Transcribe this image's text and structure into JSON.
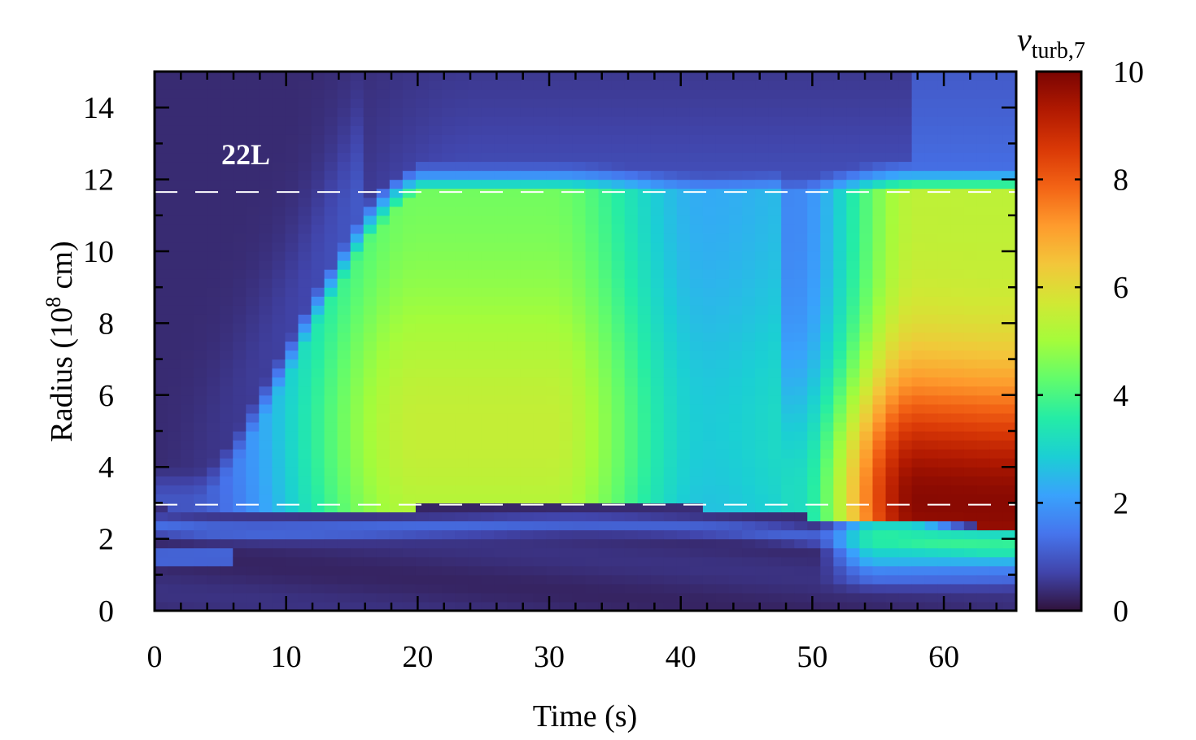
{
  "chart_data": {
    "type": "heatmap",
    "title": "",
    "panel_label": "22L",
    "xlabel": "Time (s)",
    "ylabel": {
      "main": "Radius (10",
      "exponent": "8",
      "unit": " cm)"
    },
    "xlim": [
      0,
      65.5
    ],
    "ylim": [
      0,
      15
    ],
    "x_ticks": [
      0,
      10,
      20,
      30,
      40,
      50,
      60
    ],
    "x_tick_labels": [
      "0",
      "10",
      "20",
      "30",
      "40",
      "50",
      "60"
    ],
    "y_ticks": [
      0,
      2,
      4,
      6,
      8,
      10,
      12,
      14
    ],
    "y_tick_labels": [
      "0",
      "2",
      "4",
      "6",
      "8",
      "10",
      "12",
      "14"
    ],
    "colorbar": {
      "label": {
        "main": "v",
        "subscript": "turb,7"
      },
      "range": [
        0,
        10
      ],
      "ticks": [
        0,
        2,
        4,
        6,
        8,
        10
      ],
      "tick_labels": [
        "0",
        "2",
        "4",
        "6",
        "8",
        "10"
      ],
      "colormap": "turbo",
      "colors": [
        "#30123b",
        "#4145ab",
        "#4675ed",
        "#39a2fc",
        "#1bcfd4",
        "#24eca6",
        "#61fc6c",
        "#a4fc3b",
        "#d1e834",
        "#f3c63a",
        "#fe9b2d",
        "#f36315",
        "#d93806",
        "#b11901",
        "#7a0402"
      ]
    },
    "reference_lines": [
      {
        "y": 11.65,
        "style": "dashed",
        "color": "#ffffff"
      },
      {
        "y": 2.95,
        "style": "dashed",
        "color": "#ffffff"
      }
    ],
    "time_samples": [
      0,
      2,
      4,
      6,
      8,
      10,
      12,
      14,
      16,
      18,
      20,
      22,
      24,
      26,
      28,
      30,
      32,
      34,
      36,
      38,
      40,
      42,
      44,
      46,
      48,
      50,
      52,
      54,
      56,
      58,
      60,
      62,
      64
    ],
    "radius_samples": [
      0.25,
      0.75,
      1.25,
      1.75,
      2.25,
      2.75,
      3.25,
      3.75,
      4.25,
      4.75,
      5.25,
      5.75,
      6.25,
      6.75,
      7.25,
      7.75,
      8.25,
      8.75,
      9.25,
      9.75,
      10.25,
      10.75,
      11.25,
      11.75,
      12.25,
      12.75,
      13.25,
      13.75,
      14.25,
      14.75
    ],
    "features": {
      "inner_shell_edge_radius": [
        2.9,
        2.8,
        2.78,
        2.8,
        2.83,
        2.88,
        2.92,
        2.96,
        2.98,
        2.95,
        2.9,
        2.82,
        2.7,
        2.55,
        2.55,
        2.45,
        2.35
      ],
      "inner_shell_edge_time": [
        0,
        4,
        8,
        12,
        16,
        20,
        24,
        28,
        32,
        36,
        40,
        44,
        48,
        52,
        56,
        60,
        64
      ],
      "convective_front_time": [
        4,
        6,
        8,
        10,
        12,
        14,
        16,
        18,
        20
      ],
      "convective_front_radius": [
        3.2,
        4.0,
        5.2,
        6.4,
        7.8,
        9.0,
        10.2,
        11.0,
        11.65
      ],
      "peak_value_interval_20_30s": 5.5,
      "trough_value_near_42s": 2.8,
      "peak_value_interval_55_64s": 9.8
    }
  }
}
